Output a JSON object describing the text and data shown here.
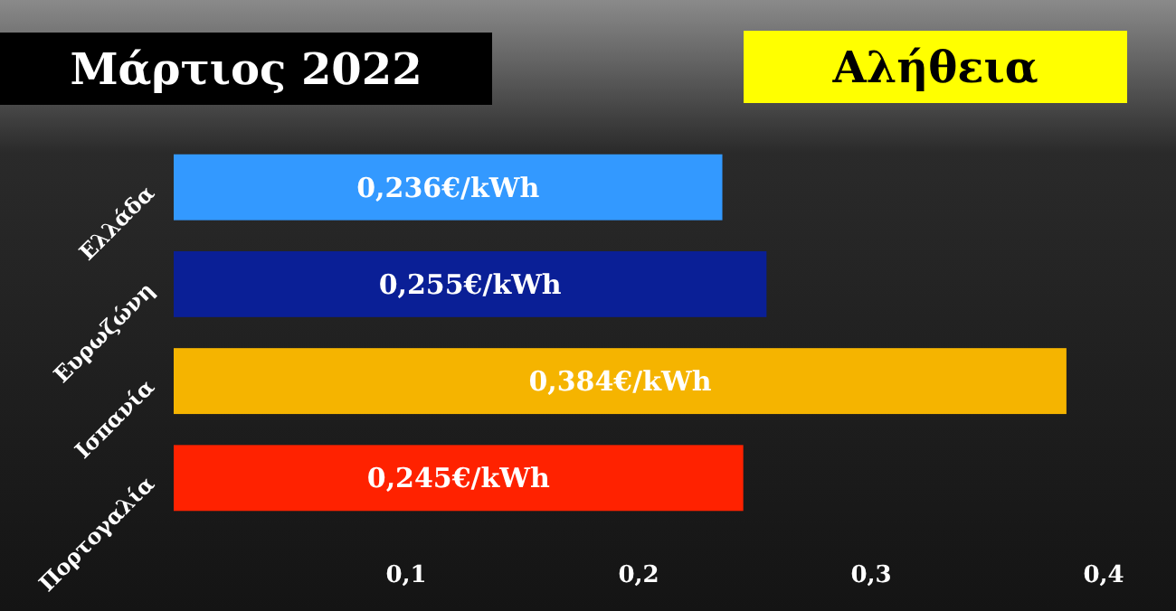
{
  "chart_data": {
    "type": "bar",
    "orientation": "horizontal",
    "title": "Μάρτιος 2022",
    "subtitle": "Αλήθεια",
    "categories": [
      "Ελλάδα",
      "Ευρωζώνη",
      "Ισπανία",
      "Πορτογαλία"
    ],
    "values": [
      0.236,
      0.255,
      0.384,
      0.245
    ],
    "colors": [
      "#3399ff",
      "#0a1f96",
      "#f5b400",
      "#ff2200"
    ],
    "value_labels": [
      "0,236€/kWh",
      "0,255€/kWh",
      "0,384€/kWh",
      "0,245€/kWh"
    ],
    "xlim": [
      0,
      0.4
    ],
    "xticks": [
      {
        "value": 0.1,
        "label": "0,1"
      },
      {
        "value": 0.2,
        "label": "0,2"
      },
      {
        "value": 0.3,
        "label": "0,3"
      },
      {
        "value": 0.4,
        "label": "0,4"
      }
    ],
    "grid": false
  }
}
